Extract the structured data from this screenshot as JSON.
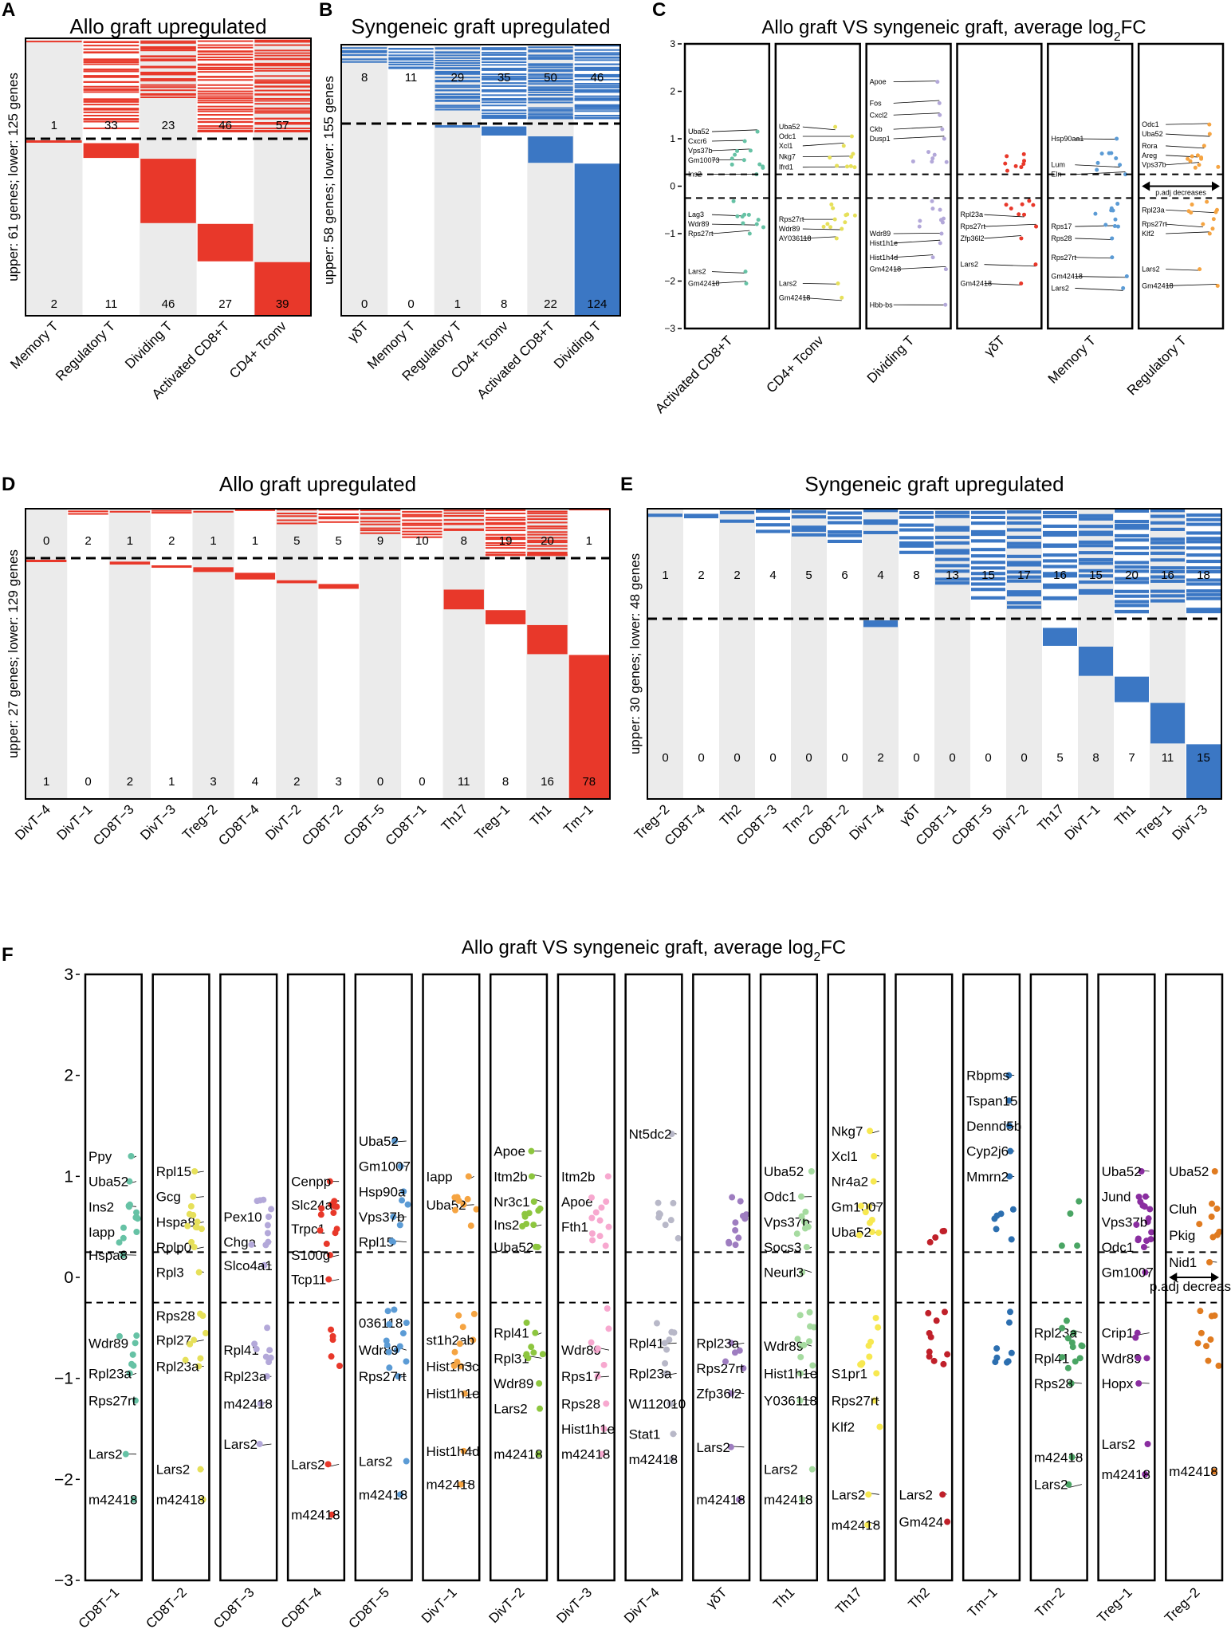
{
  "colors": {
    "allo": "#e8382a",
    "syn": "#3b77c4",
    "band": "#ebebeb"
  },
  "panel_letters": [
    "A",
    "B",
    "C",
    "D",
    "E",
    "F"
  ],
  "chart_data": [
    {
      "type": "heatmap",
      "id": "A",
      "title": "Allo graft upregulated",
      "ylabel": "upper: 61 genes; lower: 125 genes",
      "categories": [
        "Memory T",
        "Regulatory T",
        "Dividing T",
        "Activated CD8+T",
        "CD4+ Tconv"
      ],
      "upper_counts": [
        1,
        33,
        23,
        46,
        57
      ],
      "lower_counts": [
        2,
        11,
        46,
        27,
        39
      ],
      "upper_total": 61,
      "lower_total": 125
    },
    {
      "type": "heatmap",
      "id": "B",
      "title": "Syngeneic graft upregulated",
      "ylabel": "upper: 58 genes; lower: 155 genes",
      "categories": [
        "γδT",
        "Memory T",
        "Regulatory T",
        "CD4+ Tconv",
        "Activated CD8+T",
        "Dividing T"
      ],
      "upper_counts": [
        8,
        11,
        29,
        35,
        50,
        46
      ],
      "lower_counts": [
        0,
        0,
        1,
        8,
        22,
        124
      ],
      "upper_total": 58,
      "lower_total": 155
    },
    {
      "type": "scatter",
      "id": "C",
      "title": "Allo graft VS syngeneic graft, average log2FC",
      "ylim": [
        -3,
        3
      ],
      "yticks": [
        3,
        2,
        1,
        0,
        -1,
        -2,
        -3
      ],
      "thresholds": [
        0.25,
        -0.25
      ],
      "categories": [
        "Activated CD8+T",
        "CD4+ Tconv",
        "Dividing T",
        "γδT",
        "Memory T",
        "Regulatory T"
      ],
      "annotation": "p.adj decreases",
      "series": [
        {
          "name": "Activated CD8+T",
          "color": "#66c2a5",
          "labels": [
            [
              "Uba52",
              1.15
            ],
            [
              "Cxcr6",
              0.95
            ],
            [
              "Vps37b",
              0.75
            ],
            [
              "Gm10073",
              0.55
            ],
            [
              "Ins2",
              0.25
            ],
            [
              "Lag3",
              -0.6
            ],
            [
              "Wdr89",
              -0.8
            ],
            [
              "Rps27rt",
              -1.0
            ],
            [
              "Lars2",
              -1.8
            ],
            [
              "Gm42418",
              -2.05
            ]
          ]
        },
        {
          "name": "CD4+ Tconv",
          "color": "#e6e05a",
          "labels": [
            [
              "Uba52",
              1.25
            ],
            [
              "Odc1",
              1.05
            ],
            [
              "Xcl1",
              0.85
            ],
            [
              "Nkg7",
              0.62
            ],
            [
              "Ifrd1",
              0.4
            ],
            [
              "Rps27rt",
              -0.7
            ],
            [
              "Wdr89",
              -0.9
            ],
            [
              "AY036118",
              -1.1
            ],
            [
              "Lars2",
              -2.05
            ],
            [
              "Gm42418",
              -2.35
            ]
          ]
        },
        {
          "name": "Dividing T",
          "color": "#b3a8d9",
          "labels": [
            [
              "Apoe",
              2.2
            ],
            [
              "Fos",
              1.75
            ],
            [
              "Cxcl2",
              1.5
            ],
            [
              "Ckb",
              1.2
            ],
            [
              "Dusp1",
              1.0
            ],
            [
              "Wdr89",
              -1.0
            ],
            [
              "Hist1h1e",
              -1.2
            ],
            [
              "Hist1h4d",
              -1.5
            ],
            [
              "Gm42418",
              -1.75
            ],
            [
              "Hbb-bs",
              -2.5
            ]
          ]
        },
        {
          "name": "γδT",
          "color": "#e8382a",
          "labels": [
            [
              "Rpl23a",
              -0.6
            ],
            [
              "Rps27rt",
              -0.85
            ],
            [
              "Zfp36l2",
              -1.1
            ],
            [
              "Lars2",
              -1.65
            ],
            [
              "Gm42418",
              -2.05
            ]
          ]
        },
        {
          "name": "Memory T",
          "color": "#5b9bd5",
          "labels": [
            [
              "Hsp90aa1",
              1.0
            ],
            [
              "Lum",
              0.45
            ],
            [
              "Eln",
              0.25
            ],
            [
              "Rps17",
              -0.85
            ],
            [
              "Rps28",
              -1.1
            ],
            [
              "Rps27rt",
              -1.5
            ],
            [
              "Gm42418",
              -1.9
            ],
            [
              "Lars2",
              -2.15
            ]
          ]
        },
        {
          "name": "Regulatory T",
          "color": "#f5a442",
          "labels": [
            [
              "Odc1",
              1.3
            ],
            [
              "Uba52",
              1.1
            ],
            [
              "Rora",
              0.85
            ],
            [
              "Areg",
              0.65
            ],
            [
              "Vps37b",
              0.45
            ],
            [
              "Rpl23a",
              -0.5
            ],
            [
              "Rps27rt",
              -0.8
            ],
            [
              "Klf2",
              -1.0
            ],
            [
              "Lars2",
              -1.75
            ],
            [
              "Gm42418",
              -2.1
            ]
          ]
        }
      ]
    },
    {
      "type": "heatmap",
      "id": "D",
      "title": "Allo graft upregulated",
      "ylabel": "upper: 27 genes; lower: 129 genes",
      "categories": [
        "DivT−4",
        "DivT−1",
        "CD8T−3",
        "DivT−3",
        "Treg−2",
        "CD8T−4",
        "DivT−2",
        "CD8T−2",
        "CD8T−5",
        "CD8T−1",
        "Th17",
        "Treg−1",
        "Th1",
        "Tm−1"
      ],
      "upper_counts": [
        0,
        2,
        1,
        2,
        1,
        1,
        5,
        5,
        9,
        10,
        8,
        19,
        20,
        1
      ],
      "lower_counts": [
        1,
        0,
        2,
        1,
        3,
        4,
        2,
        3,
        0,
        0,
        11,
        8,
        16,
        78
      ],
      "upper_total": 27,
      "lower_total": 129
    },
    {
      "type": "heatmap",
      "id": "E",
      "title": "Syngeneic graft upregulated",
      "ylabel": "upper: 30 genes; lower: 48 genes",
      "categories": [
        "Treg−2",
        "CD8T−4",
        "Th2",
        "CD8T−3",
        "Tm−2",
        "CD8T−2",
        "DivT−4",
        "γδT",
        "CD8T−1",
        "CD8T−5",
        "DivT−2",
        "Th17",
        "DivT−1",
        "Th1",
        "Treg−1",
        "DivT−3"
      ],
      "upper_counts": [
        1,
        2,
        2,
        4,
        5,
        6,
        4,
        8,
        13,
        15,
        17,
        16,
        15,
        20,
        16,
        18
      ],
      "lower_counts": [
        0,
        0,
        0,
        0,
        0,
        0,
        2,
        0,
        0,
        0,
        0,
        5,
        8,
        7,
        11,
        15
      ],
      "upper_total": 30,
      "lower_total": 48
    },
    {
      "type": "scatter",
      "id": "F",
      "title": "Allo graft VS syngeneic graft, average log2FC",
      "ylim": [
        -3,
        3
      ],
      "yticks": [
        3,
        2,
        1,
        0,
        -1,
        -2,
        -3
      ],
      "thresholds": [
        0.25,
        -0.25
      ],
      "categories": [
        "CD8T−1",
        "CD8T−2",
        "CD8T−3",
        "CD8T−4",
        "CD8T−5",
        "DivT−1",
        "DivT−2",
        "DivT−3",
        "DivT−4",
        "γδT",
        "Th1",
        "Th17",
        "Th2",
        "Tm−1",
        "Tm−2",
        "Treg−1",
        "Treg−2"
      ],
      "annotation": "p.adj decrease",
      "series": [
        {
          "name": "CD8T−1",
          "color": "#66c2a5",
          "labels": [
            [
              "Ppy",
              1.2
            ],
            [
              "Uba52",
              0.95
            ],
            [
              "Ins2",
              0.7
            ],
            [
              "Iapp",
              0.45
            ],
            [
              "Hspa8",
              0.22
            ],
            [
              "Wdr89",
              -0.65
            ],
            [
              "Rpl23a",
              -0.95
            ],
            [
              "Rps27rt",
              -1.22
            ],
            [
              "Lars2",
              -1.75
            ],
            [
              "m42418",
              -2.2
            ]
          ]
        },
        {
          "name": "CD8T−2",
          "color": "#e6e05a",
          "labels": [
            [
              "Rpl15",
              1.05
            ],
            [
              "Gcg",
              0.8
            ],
            [
              "Hspa8",
              0.55
            ],
            [
              "Rplp0",
              0.3
            ],
            [
              "Rpl3",
              0.05
            ],
            [
              "Rps28",
              -0.38
            ],
            [
              "Rpl27",
              -0.62
            ],
            [
              "Rpl23a",
              -0.88
            ],
            [
              "Lars2",
              -1.9
            ],
            [
              "m42418",
              -2.2
            ]
          ]
        },
        {
          "name": "CD8T−3",
          "color": "#b3a8d9",
          "labels": [
            [
              "Pex10",
              0.6
            ],
            [
              "Chga",
              0.35
            ],
            [
              "Slco4a1",
              0.12
            ],
            [
              "Rpl41",
              -0.72
            ],
            [
              "Rpl23a",
              -0.98
            ],
            [
              "m42418",
              -1.25
            ],
            [
              "Lars2",
              -1.65
            ]
          ]
        },
        {
          "name": "CD8T−4",
          "color": "#e8382a",
          "labels": [
            [
              "Cenpp",
              0.95
            ],
            [
              "Slc24a5",
              0.72
            ],
            [
              "Trpc1",
              0.48
            ],
            [
              "S100g",
              0.22
            ],
            [
              "Tcp11",
              -0.02
            ],
            [
              "Lars2",
              -1.85
            ],
            [
              "m42418",
              -2.35
            ]
          ]
        },
        {
          "name": "CD8T−5",
          "color": "#5b9bd5",
          "labels": [
            [
              "Uba52",
              1.35
            ],
            [
              "Gm1007",
              1.1
            ],
            [
              "Hsp90a",
              0.85
            ],
            [
              "Vps37b",
              0.6
            ],
            [
              "Rpl15",
              0.35
            ],
            [
              "036118",
              -0.45
            ],
            [
              "Wdr89",
              -0.72
            ],
            [
              "Rps27rt",
              -0.98
            ],
            [
              "Lars2",
              -1.82
            ],
            [
              "m42418",
              -2.15
            ]
          ]
        },
        {
          "name": "DivT−1",
          "color": "#f5a442",
          "labels": [
            [
              "Iapp",
              1.0
            ],
            [
              "Uba52",
              0.72
            ],
            [
              "st1h2ab",
              -0.62
            ],
            [
              "Hist1h3c",
              -0.88
            ],
            [
              "Hist1h1e",
              -1.15
            ],
            [
              "Hist1h4d",
              -1.72
            ],
            [
              "m42418",
              -2.05
            ]
          ]
        },
        {
          "name": "DivT−2",
          "color": "#8dc63f",
          "labels": [
            [
              "Apoe",
              1.25
            ],
            [
              "Itm2b",
              1.0
            ],
            [
              "Nr3c1",
              0.75
            ],
            [
              "Ins2",
              0.52
            ],
            [
              "Uba52",
              0.3
            ],
            [
              "Rpl41",
              -0.55
            ],
            [
              "Rpl31",
              -0.8
            ],
            [
              "Wdr89",
              -1.05
            ],
            [
              "Lars2",
              -1.3
            ],
            [
              "m42418",
              -1.75
            ]
          ]
        },
        {
          "name": "DivT−3",
          "color": "#f7a8cf",
          "labels": [
            [
              "Itm2b",
              1.0
            ],
            [
              "Apoe",
              0.75
            ],
            [
              "Fth1",
              0.5
            ],
            [
              "Wdr89",
              -0.72
            ],
            [
              "Rps17",
              -0.98
            ],
            [
              "Rps28",
              -1.25
            ],
            [
              "Hist1h1e",
              -1.5
            ],
            [
              "m42418",
              -1.75
            ]
          ]
        },
        {
          "name": "DivT−4",
          "color": "#b8b8c8",
          "labels": [
            [
              "Nt5dc2",
              1.42
            ],
            [
              "Rpl41",
              -0.65
            ],
            [
              "Rpl23a",
              -0.95
            ],
            [
              "W112010",
              -1.25
            ],
            [
              "Stat1",
              -1.55
            ],
            [
              "m42418",
              -1.8
            ]
          ]
        },
        {
          "name": "γδT",
          "color": "#9e7dc0",
          "labels": [
            [
              "Rpl23a",
              -0.65
            ],
            [
              "Rps27rt",
              -0.9
            ],
            [
              "Zfp36l2",
              -1.15
            ],
            [
              "Lars2",
              -1.68
            ],
            [
              "m42418",
              -2.2
            ]
          ]
        },
        {
          "name": "Th1",
          "color": "#a6dba0",
          "labels": [
            [
              "Uba52",
              1.05
            ],
            [
              "Odc1",
              0.8
            ],
            [
              "Vps37b",
              0.55
            ],
            [
              "Socs3",
              0.3
            ],
            [
              "Neurl3",
              0.05
            ],
            [
              "Wdr89",
              -0.68
            ],
            [
              "Hist1h1e",
              -0.95
            ],
            [
              "Y036118",
              -1.22
            ],
            [
              "Lars2",
              -1.9
            ],
            [
              "m42418",
              -2.2
            ]
          ]
        },
        {
          "name": "Th17",
          "color": "#f7e850",
          "labels": [
            [
              "Nkg7",
              1.45
            ],
            [
              "Xcl1",
              1.2
            ],
            [
              "Nr4a2",
              0.95
            ],
            [
              "Gm1007",
              0.7
            ],
            [
              "Uba52",
              0.45
            ],
            [
              "S1pr1",
              -0.95
            ],
            [
              "Rps27rt",
              -1.22
            ],
            [
              "Klf2",
              -1.48
            ],
            [
              "Lars2",
              -2.15
            ],
            [
              "m42418",
              -2.45
            ]
          ]
        },
        {
          "name": "Th2",
          "color": "#c0202a",
          "labels": [
            [
              "Lars2",
              -2.15
            ],
            [
              "Gm424",
              -2.42
            ]
          ]
        },
        {
          "name": "Tm−1",
          "color": "#2c6fb0",
          "labels": [
            [
              "Rbpms",
              2.0
            ],
            [
              "Tspan15",
              1.75
            ],
            [
              "Dennd5b",
              1.5
            ],
            [
              "Cyp2j6",
              1.25
            ],
            [
              "Mmrn2",
              1.0
            ]
          ]
        },
        {
          "name": "Tm−2",
          "color": "#4aa564",
          "labels": [
            [
              "Rpl23a",
              -0.55
            ],
            [
              "Rpl41",
              -0.8
            ],
            [
              "Rps28",
              -1.05
            ],
            [
              "m42418",
              -1.78
            ],
            [
              "Lars2",
              -2.05
            ]
          ]
        },
        {
          "name": "Treg−1",
          "color": "#8a2ea0",
          "labels": [
            [
              "Uba52",
              1.05
            ],
            [
              "Jund",
              0.8
            ],
            [
              "Vps37b",
              0.55
            ],
            [
              "Odc1",
              0.3
            ],
            [
              "Gm1007",
              0.05
            ],
            [
              "Crip1",
              -0.55
            ],
            [
              "Wdr89",
              -0.8
            ],
            [
              "Hopx",
              -1.05
            ],
            [
              "Lars2",
              -1.65
            ],
            [
              "m42418",
              -1.95
            ]
          ]
        },
        {
          "name": "Treg−2",
          "color": "#e07b20",
          "labels": [
            [
              "Uba52",
              1.05
            ],
            [
              "Cluh",
              0.68
            ],
            [
              "Pkig",
              0.42
            ],
            [
              "Nid1",
              0.15
            ],
            [
              "m42418",
              -1.92
            ]
          ]
        }
      ]
    }
  ]
}
